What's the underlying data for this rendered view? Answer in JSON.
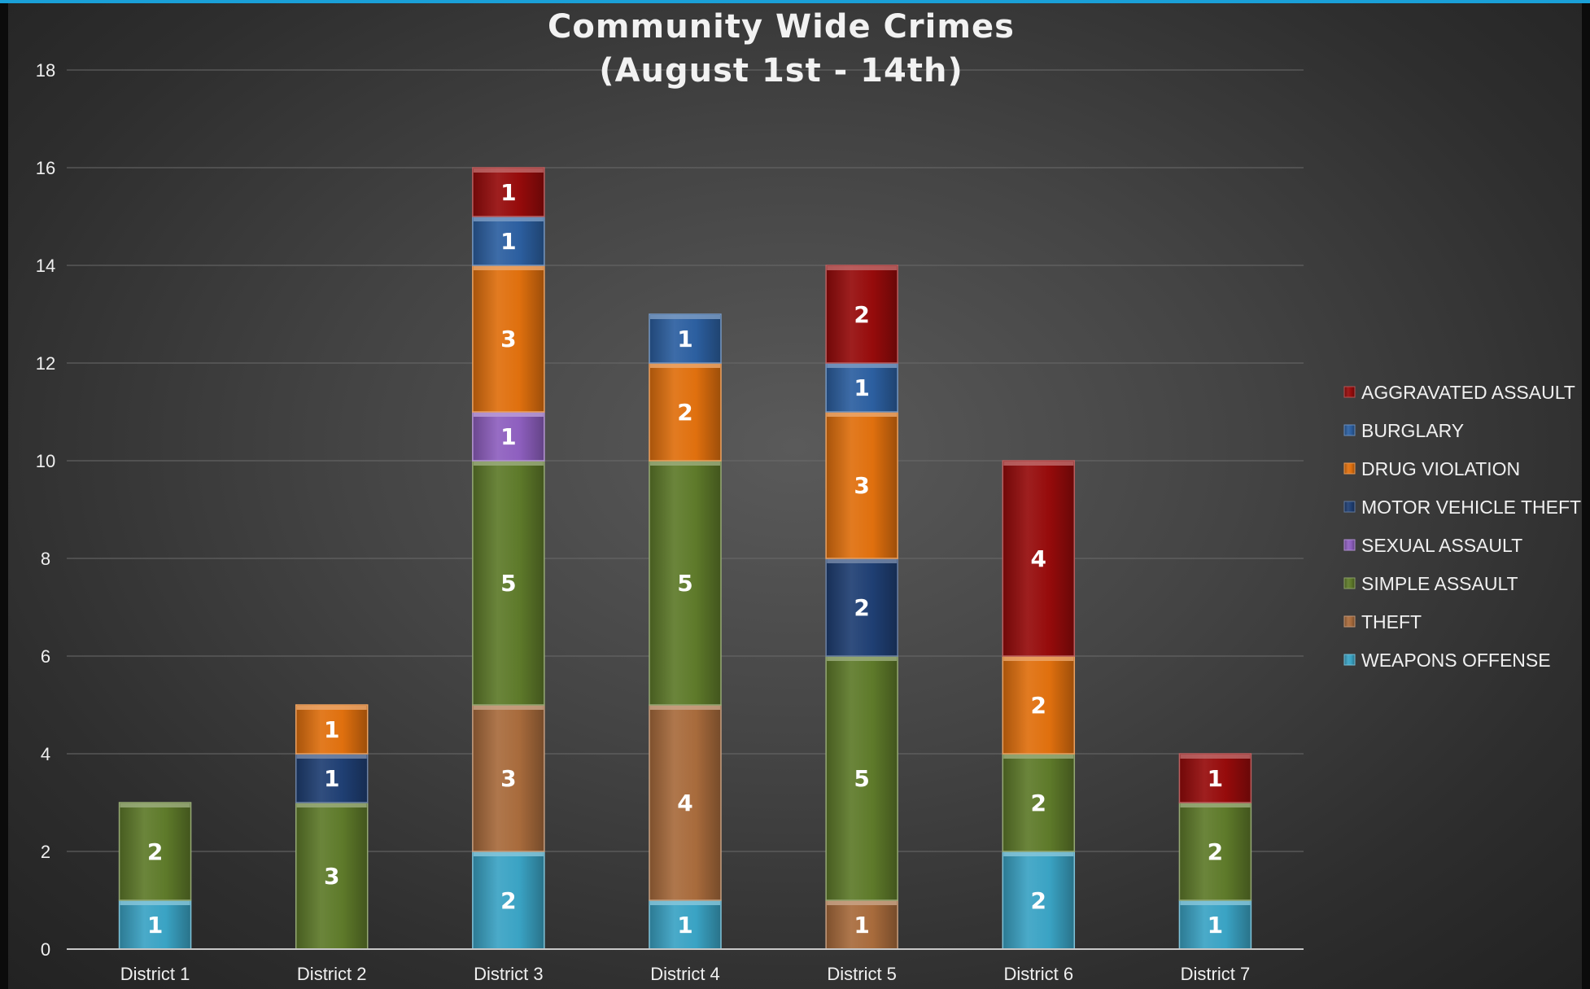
{
  "chart_data": {
    "type": "bar",
    "stacked": true,
    "title": "Community Wide Crimes",
    "subtitle": "(August 1st - 14th)",
    "categories": [
      "District 1",
      "District 2",
      "District 3",
      "District 4",
      "District 5",
      "District 6",
      "District 7"
    ],
    "ylim": [
      0,
      18
    ],
    "yticks": [
      0,
      2,
      4,
      6,
      8,
      10,
      12,
      14,
      16,
      18
    ],
    "grid": true,
    "legend_position": "right",
    "series": [
      {
        "name": "WEAPONS OFFENSE",
        "color": "#3aa3c4",
        "values": [
          1,
          0,
          2,
          1,
          0,
          2,
          1
        ]
      },
      {
        "name": "THEFT",
        "color": "#a86b3c",
        "values": [
          0,
          0,
          3,
          4,
          1,
          0,
          0
        ]
      },
      {
        "name": "SIMPLE ASSAULT",
        "color": "#5e7a2a",
        "values": [
          2,
          3,
          5,
          5,
          5,
          2,
          2
        ]
      },
      {
        "name": "SEXUAL ASSAULT",
        "color": "#8e5fbf",
        "values": [
          0,
          0,
          1,
          0,
          0,
          0,
          0
        ]
      },
      {
        "name": "MOTOR VEHICLE THEFT",
        "color": "#1f3f73",
        "values": [
          0,
          1,
          0,
          0,
          2,
          0,
          0
        ]
      },
      {
        "name": "DRUG VIOLATION",
        "color": "#e0700e",
        "values": [
          0,
          1,
          3,
          2,
          3,
          2,
          0
        ]
      },
      {
        "name": "BURGLARY",
        "color": "#2c5fa0",
        "values": [
          0,
          0,
          1,
          1,
          1,
          0,
          0
        ]
      },
      {
        "name": "AGGRAVATED ASSAULT",
        "color": "#960b0b",
        "values": [
          0,
          0,
          1,
          0,
          2,
          4,
          1
        ]
      }
    ],
    "legend_order": [
      "AGGRAVATED ASSAULT",
      "BURGLARY",
      "DRUG VIOLATION",
      "MOTOR VEHICLE THEFT",
      "SEXUAL ASSAULT",
      "SIMPLE ASSAULT",
      "THEFT",
      "WEAPONS OFFENSE"
    ]
  }
}
